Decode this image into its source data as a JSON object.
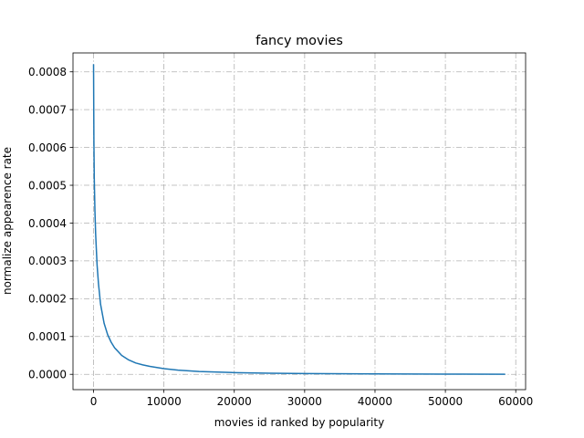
{
  "chart_data": {
    "type": "line",
    "title": "fancy movies",
    "xlabel": "movies id ranked by popularity",
    "ylabel": "normalize appearence rate",
    "xlim": [
      -2920,
      61400
    ],
    "ylim": [
      -4.05e-05,
      0.00085
    ],
    "xticks": [
      0,
      10000,
      20000,
      30000,
      40000,
      50000,
      60000
    ],
    "xtick_labels": [
      "0",
      "10000",
      "20000",
      "30000",
      "40000",
      "50000",
      "60000"
    ],
    "yticks": [
      0.0,
      0.0001,
      0.0002,
      0.0003,
      0.0004,
      0.0005,
      0.0006,
      0.0007,
      0.0008
    ],
    "ytick_labels": [
      "0.0000",
      "0.0001",
      "0.0002",
      "0.0003",
      "0.0004",
      "0.0005",
      "0.0006",
      "0.0007",
      "0.0008"
    ],
    "grid": true,
    "series": [
      {
        "color": "#1f77b4",
        "x": [
          0,
          50,
          100,
          200,
          300,
          500,
          700,
          1000,
          1500,
          2000,
          2500,
          3000,
          4000,
          5000,
          6000,
          7000,
          8000,
          10000,
          12000,
          15000,
          20000,
          25000,
          30000,
          40000,
          50000,
          58500
        ],
        "y": [
          0.00082,
          0.00062,
          0.00052,
          0.00043,
          0.00037,
          0.00029,
          0.00024,
          0.000185,
          0.000135,
          0.000105,
          8.5e-05,
          7e-05,
          5e-05,
          3.8e-05,
          3e-05,
          2.5e-05,
          2.1e-05,
          1.5e-05,
          1.1e-05,
          7.5e-06,
          4.5e-06,
          3e-06,
          2e-06,
          1e-06,
          5e-07,
          2e-07
        ]
      }
    ]
  }
}
